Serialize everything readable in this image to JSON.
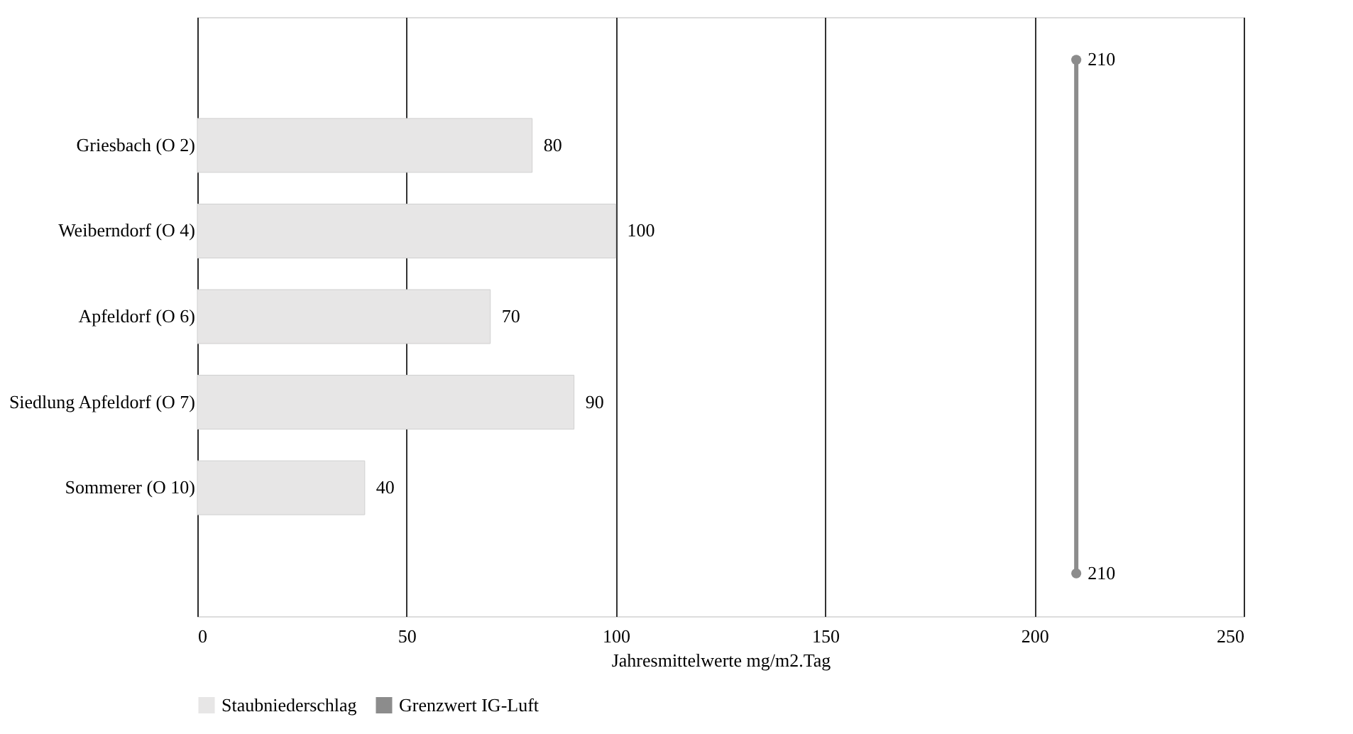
{
  "chart_data": {
    "type": "bar",
    "orientation": "horizontal",
    "xlabel": "Jahresmittelwerte mg/m2.Tag",
    "categories": [
      null,
      "Griesbach (O 2)",
      "Weiberndorf (O 4)",
      "Apfeldorf (O 6)",
      "Siedlung Apfeldorf (O 7)",
      "Sommerer (O 10)",
      null
    ],
    "series": [
      {
        "name": "Staubniederschlag",
        "color": "#e7e6e6",
        "values": [
          null,
          80,
          100,
          70,
          90,
          40,
          null
        ]
      },
      {
        "name": "Grenzwert IG-Luft",
        "type": "line",
        "color": "#8c8c8c",
        "values": [
          210,
          null,
          null,
          null,
          null,
          null,
          210
        ],
        "marker": "circle"
      }
    ],
    "xlim": [
      0,
      250
    ],
    "xticks": [
      0,
      50,
      100,
      150,
      200,
      250
    ],
    "grid": "x",
    "data_labels": true,
    "legend": "bottom"
  }
}
